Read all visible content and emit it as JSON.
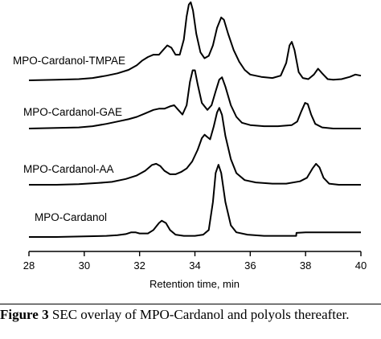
{
  "chart_data": {
    "type": "line",
    "xlabel": "Retention time, min",
    "ylabel": "",
    "xlim": [
      28,
      40
    ],
    "xticks": [
      28,
      30,
      32,
      34,
      36,
      38,
      40
    ],
    "grid": false,
    "legend": "labels placed left of each trace",
    "series": [
      {
        "name": "MPO-Cardanol-TMPAE",
        "baseline": 0,
        "points": [
          [
            28.0,
            0
          ],
          [
            29.0,
            0.005
          ],
          [
            29.8,
            0.01
          ],
          [
            30.3,
            0.02
          ],
          [
            30.8,
            0.04
          ],
          [
            31.2,
            0.06
          ],
          [
            31.6,
            0.09
          ],
          [
            31.9,
            0.13
          ],
          [
            32.1,
            0.17
          ],
          [
            32.3,
            0.2
          ],
          [
            32.5,
            0.22
          ],
          [
            32.7,
            0.22
          ],
          [
            32.85,
            0.26
          ],
          [
            33.0,
            0.3
          ],
          [
            33.15,
            0.28
          ],
          [
            33.3,
            0.22
          ],
          [
            33.45,
            0.22
          ],
          [
            33.6,
            0.35
          ],
          [
            33.7,
            0.55
          ],
          [
            33.78,
            0.65
          ],
          [
            33.85,
            0.67
          ],
          [
            33.93,
            0.6
          ],
          [
            34.05,
            0.4
          ],
          [
            34.2,
            0.24
          ],
          [
            34.35,
            0.19
          ],
          [
            34.5,
            0.21
          ],
          [
            34.65,
            0.3
          ],
          [
            34.8,
            0.45
          ],
          [
            34.95,
            0.54
          ],
          [
            35.05,
            0.52
          ],
          [
            35.2,
            0.4
          ],
          [
            35.4,
            0.26
          ],
          [
            35.6,
            0.16
          ],
          [
            35.8,
            0.09
          ],
          [
            36.0,
            0.05
          ],
          [
            36.4,
            0.03
          ],
          [
            36.8,
            0.02
          ],
          [
            37.1,
            0.04
          ],
          [
            37.3,
            0.15
          ],
          [
            37.42,
            0.3
          ],
          [
            37.5,
            0.33
          ],
          [
            37.6,
            0.26
          ],
          [
            37.75,
            0.07
          ],
          [
            37.9,
            0.02
          ],
          [
            38.1,
            0.01
          ],
          [
            38.3,
            0.05
          ],
          [
            38.45,
            0.1
          ],
          [
            38.6,
            0.06
          ],
          [
            38.8,
            0.01
          ],
          [
            39.0,
            0.005
          ],
          [
            39.3,
            0.01
          ],
          [
            39.6,
            0.03
          ],
          [
            39.8,
            0.05
          ],
          [
            40.0,
            0.04
          ]
        ]
      },
      {
        "name": "MPO-Cardanol-GAE",
        "baseline": 0,
        "points": [
          [
            28.0,
            0
          ],
          [
            29.0,
            0.005
          ],
          [
            29.8,
            0.01
          ],
          [
            30.3,
            0.02
          ],
          [
            30.8,
            0.04
          ],
          [
            31.2,
            0.06
          ],
          [
            31.6,
            0.08
          ],
          [
            31.9,
            0.1
          ],
          [
            32.2,
            0.13
          ],
          [
            32.5,
            0.16
          ],
          [
            32.7,
            0.17
          ],
          [
            32.9,
            0.17
          ],
          [
            33.1,
            0.19
          ],
          [
            33.25,
            0.2
          ],
          [
            33.4,
            0.16
          ],
          [
            33.55,
            0.12
          ],
          [
            33.7,
            0.2
          ],
          [
            33.82,
            0.4
          ],
          [
            33.92,
            0.5
          ],
          [
            34.0,
            0.5
          ],
          [
            34.1,
            0.38
          ],
          [
            34.25,
            0.22
          ],
          [
            34.45,
            0.16
          ],
          [
            34.6,
            0.2
          ],
          [
            34.75,
            0.32
          ],
          [
            34.88,
            0.42
          ],
          [
            34.98,
            0.44
          ],
          [
            35.1,
            0.36
          ],
          [
            35.3,
            0.2
          ],
          [
            35.5,
            0.1
          ],
          [
            35.7,
            0.05
          ],
          [
            36.0,
            0.03
          ],
          [
            36.5,
            0.02
          ],
          [
            37.0,
            0.02
          ],
          [
            37.5,
            0.03
          ],
          [
            37.7,
            0.06
          ],
          [
            37.85,
            0.15
          ],
          [
            37.98,
            0.22
          ],
          [
            38.08,
            0.21
          ],
          [
            38.2,
            0.12
          ],
          [
            38.35,
            0.04
          ],
          [
            38.6,
            0.01
          ],
          [
            39.0,
            0
          ],
          [
            39.5,
            0
          ],
          [
            40.0,
            0
          ]
        ]
      },
      {
        "name": "MPO-Cardanol-AA",
        "baseline": 0,
        "points": [
          [
            28.0,
            0
          ],
          [
            29.0,
            0
          ],
          [
            29.8,
            0.005
          ],
          [
            30.5,
            0.015
          ],
          [
            31.0,
            0.025
          ],
          [
            31.5,
            0.05
          ],
          [
            31.9,
            0.08
          ],
          [
            32.2,
            0.12
          ],
          [
            32.45,
            0.17
          ],
          [
            32.6,
            0.18
          ],
          [
            32.75,
            0.16
          ],
          [
            32.9,
            0.12
          ],
          [
            33.1,
            0.09
          ],
          [
            33.3,
            0.09
          ],
          [
            33.5,
            0.11
          ],
          [
            33.7,
            0.14
          ],
          [
            33.9,
            0.2
          ],
          [
            34.1,
            0.3
          ],
          [
            34.25,
            0.4
          ],
          [
            34.35,
            0.43
          ],
          [
            34.45,
            0.41
          ],
          [
            34.55,
            0.39
          ],
          [
            34.68,
            0.5
          ],
          [
            34.8,
            0.62
          ],
          [
            34.88,
            0.66
          ],
          [
            34.98,
            0.6
          ],
          [
            35.1,
            0.42
          ],
          [
            35.3,
            0.22
          ],
          [
            35.5,
            0.1
          ],
          [
            35.8,
            0.04
          ],
          [
            36.2,
            0.02
          ],
          [
            36.8,
            0.01
          ],
          [
            37.3,
            0.01
          ],
          [
            37.8,
            0.03
          ],
          [
            38.05,
            0.06
          ],
          [
            38.25,
            0.14
          ],
          [
            38.38,
            0.18
          ],
          [
            38.5,
            0.15
          ],
          [
            38.65,
            0.06
          ],
          [
            38.85,
            0.01
          ],
          [
            39.2,
            0
          ],
          [
            40.0,
            0
          ]
        ]
      },
      {
        "name": "MPO-Cardanol",
        "baseline": 0,
        "points": [
          [
            28.0,
            0
          ],
          [
            29.0,
            0
          ],
          [
            30.0,
            0.005
          ],
          [
            30.8,
            0.01
          ],
          [
            31.2,
            0.015
          ],
          [
            31.5,
            0.025
          ],
          [
            31.7,
            0.04
          ],
          [
            31.85,
            0.04
          ],
          [
            32.0,
            0.03
          ],
          [
            32.3,
            0.03
          ],
          [
            32.5,
            0.06
          ],
          [
            32.7,
            0.12
          ],
          [
            32.8,
            0.14
          ],
          [
            32.95,
            0.12
          ],
          [
            33.1,
            0.06
          ],
          [
            33.3,
            0.02
          ],
          [
            33.6,
            0.01
          ],
          [
            34.0,
            0.01
          ],
          [
            34.3,
            0.02
          ],
          [
            34.5,
            0.06
          ],
          [
            34.65,
            0.3
          ],
          [
            34.75,
            0.55
          ],
          [
            34.85,
            0.62
          ],
          [
            34.95,
            0.55
          ],
          [
            35.1,
            0.3
          ],
          [
            35.3,
            0.1
          ],
          [
            35.5,
            0.04
          ],
          [
            35.9,
            0.02
          ],
          [
            36.5,
            0.01
          ],
          [
            37.0,
            0.01
          ],
          [
            37.66,
            0.01
          ],
          [
            37.67,
            0.035
          ],
          [
            38.0,
            0.04
          ],
          [
            38.5,
            0.04
          ],
          [
            39.0,
            0.04
          ],
          [
            39.5,
            0.04
          ],
          [
            40.0,
            0.04
          ]
        ]
      }
    ]
  },
  "caption": {
    "label": "Figure 3",
    "text": "SEC overlay of MPO-Cardanol and polyols thereafter."
  }
}
